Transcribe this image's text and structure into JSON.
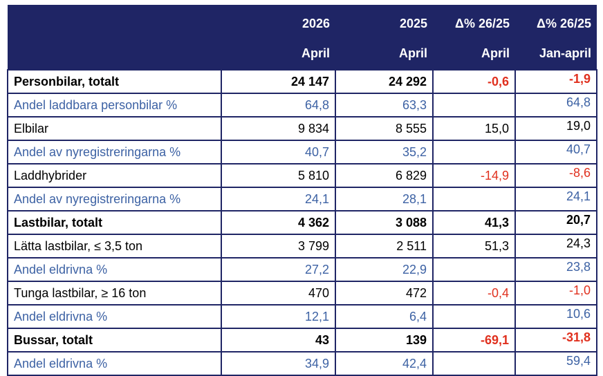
{
  "header": {
    "row1": [
      "",
      "2026",
      "2025",
      "Δ% 26/25",
      "Δ% 26/25"
    ],
    "row2": [
      "",
      "April",
      "April",
      "April",
      "Jan-april"
    ]
  },
  "rows": [
    {
      "type": "total",
      "label": "Personbilar, totalt",
      "v2026": "24 147",
      "v2025": "24 292",
      "d_april": "-0,6",
      "d_janapr": "-1,9",
      "neg_april": true,
      "neg_janapr": true
    },
    {
      "type": "share",
      "label": "Andel laddbara personbilar %",
      "v2026": "64,8",
      "v2025": "63,3",
      "d_april": "",
      "d_janapr": "64,8"
    },
    {
      "type": "normal",
      "label": "Elbilar",
      "v2026": "9 834",
      "v2025": "8 555",
      "d_april": "15,0",
      "d_janapr": "19,0"
    },
    {
      "type": "share",
      "label": "Andel av nyregistreringarna %",
      "v2026": "40,7",
      "v2025": "35,2",
      "d_april": "",
      "d_janapr": "40,7"
    },
    {
      "type": "normal",
      "label": "Laddhybrider",
      "v2026": "5 810",
      "v2025": "6 829",
      "d_april": "-14,9",
      "d_janapr": "-8,6",
      "neg_april": true,
      "neg_janapr": true
    },
    {
      "type": "share",
      "label": "Andel av nyregistreringarna %",
      "v2026": "24,1",
      "v2025": "28,1",
      "d_april": "",
      "d_janapr": "24,1"
    },
    {
      "type": "total",
      "label": "Lastbilar, totalt",
      "v2026": "4 362",
      "v2025": "3 088",
      "d_april": "41,3",
      "d_janapr": "20,7"
    },
    {
      "type": "normal",
      "label": "Lätta lastbilar, ≤ 3,5 ton",
      "v2026": "3 799",
      "v2025": "2 511",
      "d_april": "51,3",
      "d_janapr": "24,3"
    },
    {
      "type": "share",
      "label": "Andel eldrivna %",
      "v2026": "27,2",
      "v2025": "22,9",
      "d_april": "",
      "d_janapr": "23,8"
    },
    {
      "type": "normal",
      "label": "Tunga lastbilar, ≥ 16 ton",
      "v2026": "470",
      "v2025": "472",
      "d_april": "-0,4",
      "d_janapr": "-1,0",
      "neg_april": true,
      "neg_janapr": true
    },
    {
      "type": "share",
      "label": "Andel eldrivna %",
      "v2026": "12,1",
      "v2025": "6,4",
      "d_april": "",
      "d_janapr": "10,6"
    },
    {
      "type": "total",
      "label": "Bussar, totalt",
      "v2026": "43",
      "v2025": "139",
      "d_april": "-69,1",
      "d_janapr": "-31,8",
      "neg_april": true,
      "neg_janapr": true
    },
    {
      "type": "share",
      "label": "Andel eldrivna %",
      "v2026": "34,9",
      "v2025": "42,4",
      "d_april": "",
      "d_janapr": "59,4"
    }
  ],
  "colors": {
    "header_bg": "#1f2565",
    "share_text": "#3d62a4",
    "negative_text": "#e0301e"
  }
}
